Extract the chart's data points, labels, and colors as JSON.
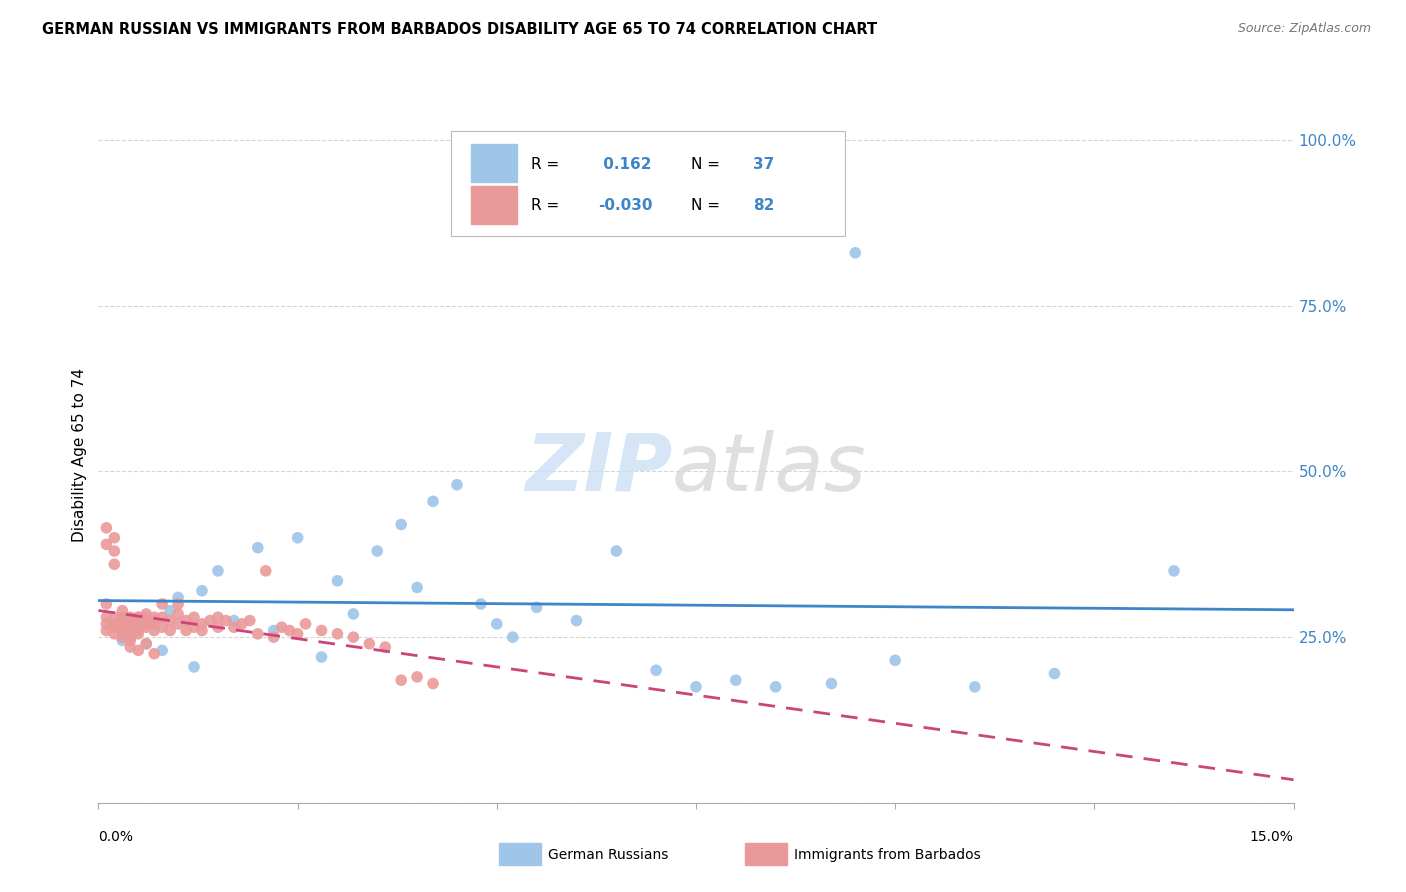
{
  "title": "GERMAN RUSSIAN VS IMMIGRANTS FROM BARBADOS DISABILITY AGE 65 TO 74 CORRELATION CHART",
  "source": "Source: ZipAtlas.com",
  "ylabel": "Disability Age 65 to 74",
  "color_blue": "#9fc5e8",
  "color_pink": "#ea9999",
  "color_blue_line": "#3d85c8",
  "color_pink_line": "#cc4478",
  "legend_R1": " 0.162",
  "legend_N1": "37",
  "legend_R2": "-0.030",
  "legend_N2": "82",
  "xmin": 0.0,
  "xmax": 0.15,
  "ymin": 0.0,
  "ymax": 1.05,
  "ytick_positions": [
    0.0,
    0.25,
    0.5,
    0.75,
    1.0
  ],
  "ytick_labels": [
    "",
    "25.0%",
    "50.0%",
    "75.0%",
    "100.0%"
  ],
  "xtick_positions": [
    0.0,
    0.025,
    0.05,
    0.075,
    0.1,
    0.125,
    0.15
  ],
  "gr_x": [
    0.003,
    0.005,
    0.006,
    0.008,
    0.009,
    0.01,
    0.012,
    0.013,
    0.015,
    0.017,
    0.02,
    0.022,
    0.025,
    0.028,
    0.03,
    0.032,
    0.035,
    0.038,
    0.04,
    0.042,
    0.045,
    0.048,
    0.05,
    0.052,
    0.055,
    0.06,
    0.065,
    0.07,
    0.075,
    0.08,
    0.085,
    0.092,
    0.095,
    0.1,
    0.11,
    0.12,
    0.135
  ],
  "gr_y": [
    0.245,
    0.27,
    0.24,
    0.23,
    0.29,
    0.31,
    0.205,
    0.32,
    0.35,
    0.275,
    0.385,
    0.26,
    0.4,
    0.22,
    0.335,
    0.285,
    0.38,
    0.42,
    0.325,
    0.455,
    0.48,
    0.3,
    0.27,
    0.25,
    0.295,
    0.275,
    0.38,
    0.2,
    0.175,
    0.185,
    0.175,
    0.18,
    0.83,
    0.215,
    0.175,
    0.195,
    0.35
  ],
  "bb_x": [
    0.001,
    0.001,
    0.001,
    0.001,
    0.002,
    0.002,
    0.002,
    0.002,
    0.002,
    0.003,
    0.003,
    0.003,
    0.003,
    0.003,
    0.003,
    0.004,
    0.004,
    0.004,
    0.004,
    0.004,
    0.005,
    0.005,
    0.005,
    0.005,
    0.005,
    0.005,
    0.006,
    0.006,
    0.006,
    0.006,
    0.006,
    0.007,
    0.007,
    0.007,
    0.007,
    0.008,
    0.008,
    0.008,
    0.009,
    0.009,
    0.01,
    0.01,
    0.01,
    0.011,
    0.011,
    0.012,
    0.012,
    0.013,
    0.013,
    0.014,
    0.015,
    0.015,
    0.016,
    0.017,
    0.018,
    0.019,
    0.02,
    0.021,
    0.022,
    0.023,
    0.024,
    0.025,
    0.026,
    0.028,
    0.03,
    0.032,
    0.034,
    0.036,
    0.038,
    0.04,
    0.042,
    0.001,
    0.001,
    0.002,
    0.002,
    0.003,
    0.003,
    0.004,
    0.004,
    0.005,
    0.006,
    0.007
  ],
  "bb_y": [
    0.28,
    0.26,
    0.27,
    0.3,
    0.4,
    0.27,
    0.28,
    0.265,
    0.255,
    0.26,
    0.275,
    0.27,
    0.28,
    0.265,
    0.29,
    0.25,
    0.275,
    0.265,
    0.28,
    0.26,
    0.26,
    0.28,
    0.27,
    0.265,
    0.28,
    0.255,
    0.27,
    0.285,
    0.265,
    0.28,
    0.27,
    0.28,
    0.26,
    0.275,
    0.27,
    0.3,
    0.265,
    0.28,
    0.26,
    0.275,
    0.285,
    0.27,
    0.3,
    0.275,
    0.26,
    0.28,
    0.265,
    0.27,
    0.26,
    0.275,
    0.265,
    0.28,
    0.275,
    0.265,
    0.27,
    0.275,
    0.255,
    0.35,
    0.25,
    0.265,
    0.26,
    0.255,
    0.27,
    0.26,
    0.255,
    0.25,
    0.24,
    0.235,
    0.185,
    0.19,
    0.18,
    0.39,
    0.415,
    0.38,
    0.36,
    0.27,
    0.25,
    0.245,
    0.235,
    0.23,
    0.24,
    0.225
  ]
}
